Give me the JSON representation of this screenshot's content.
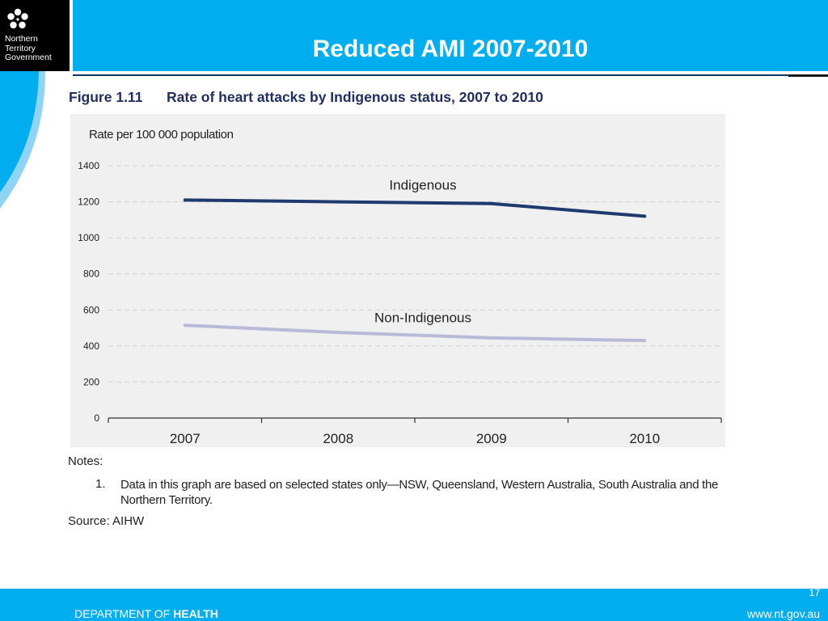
{
  "logo": {
    "line1": "Northern",
    "line2": "Territory",
    "line3": "Government"
  },
  "slide_title": "Reduced AMI 2007-2010",
  "figure": {
    "label": "Figure 1.11",
    "caption": "Rate of heart attacks by Indigenous status, 2007 to 2010"
  },
  "chart_data": {
    "type": "line",
    "ylabel": "Rate per 100 000 population",
    "xlabel": "",
    "x": [
      "2007",
      "2008",
      "2009",
      "2010"
    ],
    "ylim": [
      0,
      1400
    ],
    "yticks": [
      "0",
      "200",
      "400",
      "600",
      "800",
      "1000",
      "1200",
      "1400"
    ],
    "grid": true,
    "series": [
      {
        "name": "Indigenous",
        "values": [
          1210,
          1200,
          1190,
          1120
        ],
        "color": "#1f3a6e"
      },
      {
        "name": "Non-Indigenous",
        "values": [
          515,
          475,
          445,
          430
        ],
        "color": "#b9b9d9"
      }
    ]
  },
  "notes": {
    "heading": "Notes:",
    "items": [
      {
        "num": "1.",
        "text": "Data in this graph are based on selected states only—NSW, Queensland, Western Australia, South Australia and the Northern Territory."
      }
    ],
    "source": "Source: AIHW"
  },
  "footer": {
    "page_number": "17",
    "department_prefix": "DEPARTMENT OF ",
    "department_bold": "HEALTH",
    "website": "www.nt.gov.au"
  },
  "colors": {
    "header": "#00aeef",
    "title_text": "#222f5e"
  }
}
